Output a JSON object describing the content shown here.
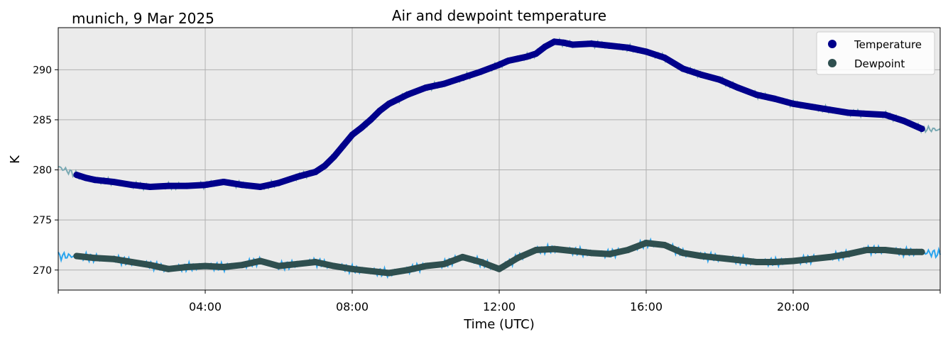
{
  "chart_data": {
    "type": "line",
    "title": "Air and dewpoint temperature",
    "subtitle": "munich, 9 Mar 2025",
    "xlabel": "Time (UTC)",
    "ylabel": "K",
    "xlim": [
      0,
      24
    ],
    "ylim": [
      268,
      294.2
    ],
    "x_ticks": [
      {
        "value": 4,
        "label": "04:00"
      },
      {
        "value": 8,
        "label": "08:00"
      },
      {
        "value": 12,
        "label": "12:00"
      },
      {
        "value": 16,
        "label": "16:00"
      },
      {
        "value": 20,
        "label": "20:00"
      }
    ],
    "y_ticks": [
      {
        "value": 270,
        "label": "270"
      },
      {
        "value": 275,
        "label": "275"
      },
      {
        "value": 280,
        "label": "280"
      },
      {
        "value": 285,
        "label": "285"
      },
      {
        "value": 290,
        "label": "290"
      }
    ],
    "grid": true,
    "legend": "top-right",
    "series": [
      {
        "name": "Temperature",
        "color": "#00008b",
        "raw_color": "#79a9b3",
        "x": [
          0.0,
          0.25,
          0.5,
          0.75,
          1.0,
          1.5,
          2.0,
          2.5,
          3.0,
          3.5,
          4.0,
          4.5,
          5.0,
          5.5,
          6.0,
          6.5,
          7.0,
          7.25,
          7.5,
          7.75,
          8.0,
          8.25,
          8.5,
          8.75,
          9.0,
          9.5,
          10.0,
          10.5,
          11.0,
          11.5,
          12.0,
          12.25,
          12.5,
          12.75,
          13.0,
          13.25,
          13.5,
          13.75,
          14.0,
          14.5,
          15.0,
          15.5,
          16.0,
          16.5,
          17.0,
          17.5,
          18.0,
          18.5,
          19.0,
          19.5,
          20.0,
          20.5,
          21.0,
          21.5,
          22.0,
          22.5,
          23.0,
          23.5,
          24.0
        ],
        "values": [
          280.3,
          279.9,
          279.5,
          279.2,
          279.0,
          278.8,
          278.5,
          278.3,
          278.4,
          278.4,
          278.5,
          278.8,
          278.5,
          278.3,
          278.7,
          279.3,
          279.8,
          280.4,
          281.3,
          282.4,
          283.5,
          284.2,
          285.0,
          285.9,
          286.6,
          287.5,
          288.2,
          288.6,
          289.2,
          289.8,
          290.5,
          290.9,
          291.1,
          291.3,
          291.6,
          292.3,
          292.8,
          292.7,
          292.5,
          292.6,
          292.4,
          292.2,
          291.8,
          291.2,
          290.1,
          289.5,
          289.0,
          288.2,
          287.5,
          287.1,
          286.6,
          286.3,
          286.0,
          285.7,
          285.6,
          285.5,
          284.9,
          284.1,
          284.0
        ]
      },
      {
        "name": "Dewpoint",
        "color": "#2f4f4f",
        "raw_color": "#29a4ee",
        "x": [
          0.0,
          0.25,
          0.5,
          1.0,
          1.5,
          2.0,
          2.5,
          3.0,
          3.5,
          4.0,
          4.5,
          5.0,
          5.5,
          6.0,
          6.5,
          7.0,
          7.5,
          8.0,
          8.5,
          9.0,
          9.5,
          10.0,
          10.5,
          11.0,
          11.5,
          12.0,
          12.5,
          13.0,
          13.5,
          14.0,
          14.5,
          15.0,
          15.5,
          16.0,
          16.5,
          17.0,
          17.5,
          18.0,
          18.5,
          19.0,
          19.5,
          20.0,
          20.5,
          21.0,
          21.5,
          22.0,
          22.5,
          23.0,
          23.5,
          24.0
        ],
        "values": [
          271.4,
          271.4,
          271.4,
          271.2,
          271.1,
          270.8,
          270.5,
          270.1,
          270.3,
          270.4,
          270.3,
          270.5,
          270.9,
          270.4,
          270.6,
          270.8,
          270.4,
          270.1,
          269.9,
          269.7,
          270.0,
          270.4,
          270.6,
          271.3,
          270.8,
          270.1,
          271.2,
          272.0,
          272.1,
          271.9,
          271.7,
          271.6,
          272.0,
          272.7,
          272.5,
          271.7,
          271.4,
          271.2,
          271.0,
          270.8,
          270.8,
          270.9,
          271.1,
          271.3,
          271.6,
          272.0,
          272.0,
          271.8,
          271.8,
          271.6
        ]
      }
    ]
  }
}
